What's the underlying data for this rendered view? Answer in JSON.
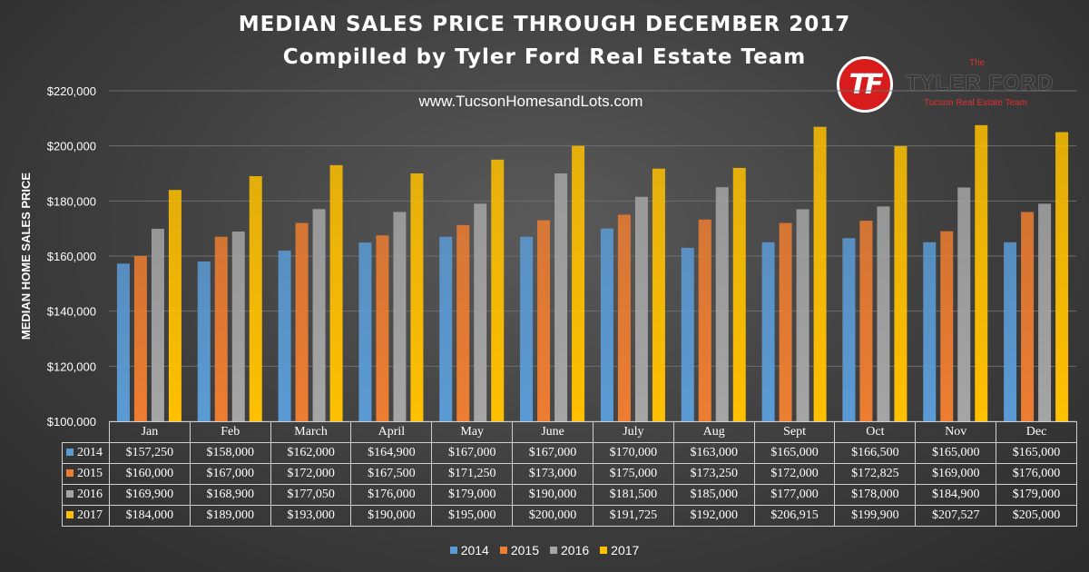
{
  "header": {
    "title": "MEDIAN SALES PRICE THROUGH DECEMBER 2017",
    "subtitle": "Compilled by Tyler Ford Real Estate Team",
    "website": "www.TucsonHomesandLots.com"
  },
  "logo": {
    "initials": "TF",
    "the": "The",
    "name": "TYLER FORD",
    "tagline": "Tucson Real Estate Team"
  },
  "colors": {
    "2014": "#5b9bd5",
    "2015": "#ed7d31",
    "2016": "#a5a5a5",
    "2017": "#ffc000"
  },
  "chart_data": {
    "type": "bar",
    "title": "MEDIAN SALES PRICE THROUGH DECEMBER 2017",
    "ylabel": "MEDIAN HOME SALES PRICE",
    "ylim": [
      100000,
      220000
    ],
    "ytick_values": [
      100000,
      120000,
      140000,
      160000,
      180000,
      200000,
      220000
    ],
    "yticks": [
      "$100,000",
      "$120,000",
      "$140,000",
      "$160,000",
      "$180,000",
      "$200,000",
      "$220,000"
    ],
    "grid": true,
    "legend": "bottom",
    "categories": [
      "Jan",
      "Feb",
      "March",
      "April",
      "May",
      "June",
      "July",
      "Aug",
      "Sept",
      "Oct",
      "Nov",
      "Dec"
    ],
    "series": [
      {
        "name": "2014",
        "values": [
          157250,
          158000,
          162000,
          164900,
          167000,
          167000,
          170000,
          163000,
          165000,
          166500,
          165000,
          165000
        ],
        "labels": [
          "$157,250",
          "$158,000",
          "$162,000",
          "$164,900",
          "$167,000",
          "$167,000",
          "$170,000",
          "$163,000",
          "$165,000",
          "$166,500",
          "$165,000",
          "$165,000"
        ]
      },
      {
        "name": "2015",
        "values": [
          160000,
          167000,
          172000,
          167500,
          171250,
          173000,
          175000,
          173250,
          172000,
          172825,
          169000,
          176000
        ],
        "labels": [
          "$160,000",
          "$167,000",
          "$172,000",
          "$167,500",
          "$171,250",
          "$173,000",
          "$175,000",
          "$173,250",
          "$172,000",
          "$172,825",
          "$169,000",
          "$176,000"
        ]
      },
      {
        "name": "2016",
        "values": [
          169900,
          168900,
          177050,
          176000,
          179000,
          190000,
          181500,
          185000,
          177000,
          178000,
          184900,
          179000
        ],
        "labels": [
          "$169,900",
          "$168,900",
          "$177,050",
          "$176,000",
          "$179,000",
          "$190,000",
          "$181,500",
          "$185,000",
          "$177,000",
          "$178,000",
          "$184,900",
          "$179,000"
        ]
      },
      {
        "name": "2017",
        "values": [
          184000,
          189000,
          193000,
          190000,
          195000,
          200000,
          191725,
          192000,
          206915,
          199900,
          207527,
          205000
        ],
        "labels": [
          "$184,000",
          "$189,000",
          "$193,000",
          "$190,000",
          "$195,000",
          "$200,000",
          "$191,725",
          "$192,000",
          "$206,915",
          "$199,900",
          "$207,527",
          "$205,000"
        ]
      }
    ]
  }
}
